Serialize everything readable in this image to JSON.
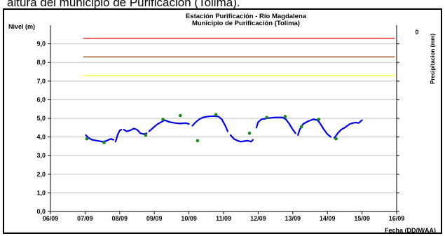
{
  "caption": "altura del municipio de Purificación (Tolima).",
  "chart_data": {
    "type": "line",
    "title": "Estación Purificación - Río Magdalena",
    "subtitle": "Municipio de Purificación (Tolima)",
    "ylabel": "Nivel (m)",
    "y2label": "Precipitacion (mm)",
    "y2_ticks": [
      "0"
    ],
    "xlabel": "Fecha (DD/M/AA)",
    "ylim": [
      0,
      10
    ],
    "yticks": [
      "0,0",
      "1,0",
      "2,0",
      "3,0",
      "4,0",
      "5,0",
      "6,0",
      "7,0",
      "8,0",
      "9,0"
    ],
    "xticks": [
      "06/09",
      "07/09",
      "08/09",
      "09/09",
      "10/09",
      "11/09",
      "12/09",
      "13/09",
      "14/09",
      "15/09",
      "16/09"
    ],
    "grid": true,
    "legend": "none",
    "thresholds": [
      {
        "value": 9.3,
        "color": "#e03030"
      },
      {
        "value": 8.3,
        "color": "#a0522d"
      },
      {
        "value": 7.3,
        "color": "#ffff33"
      }
    ],
    "series": [
      {
        "line_color": "#0000ee",
        "segments": [
          [
            [
              1.02,
              4.1
            ],
            [
              1.1,
              3.95
            ],
            [
              1.2,
              3.85
            ],
            [
              1.35,
              3.8
            ],
            [
              1.5,
              3.75
            ],
            [
              1.6,
              3.78
            ],
            [
              1.68,
              3.85
            ],
            [
              1.75,
              3.9
            ],
            [
              1.82,
              3.85
            ]
          ],
          [
            [
              1.88,
              3.75
            ],
            [
              1.95,
              4.15
            ],
            [
              2.0,
              4.35
            ],
            [
              2.05,
              4.4
            ]
          ],
          [
            [
              2.12,
              4.4
            ],
            [
              2.2,
              4.3
            ],
            [
              2.3,
              4.35
            ],
            [
              2.4,
              4.45
            ],
            [
              2.5,
              4.4
            ],
            [
              2.6,
              4.2
            ],
            [
              2.7,
              4.15
            ],
            [
              2.78,
              4.2
            ]
          ],
          [
            [
              2.85,
              4.3
            ],
            [
              3.0,
              4.55
            ],
            [
              3.1,
              4.7
            ],
            [
              3.2,
              4.8
            ],
            [
              3.3,
              4.9
            ],
            [
              3.45,
              4.8
            ],
            [
              3.6,
              4.75
            ],
            [
              3.75,
              4.72
            ],
            [
              3.9,
              4.75
            ],
            [
              4.0,
              4.7
            ]
          ],
          [
            [
              4.1,
              4.6
            ],
            [
              4.2,
              4.8
            ],
            [
              4.3,
              4.95
            ],
            [
              4.4,
              5.05
            ],
            [
              4.55,
              5.1
            ],
            [
              4.7,
              5.12
            ],
            [
              4.85,
              5.1
            ],
            [
              4.95,
              4.95
            ],
            [
              5.05,
              4.6
            ],
            [
              5.12,
              4.3
            ]
          ],
          [
            [
              5.2,
              4.1
            ],
            [
              5.3,
              3.9
            ],
            [
              5.4,
              3.8
            ],
            [
              5.5,
              3.75
            ],
            [
              5.6,
              3.78
            ],
            [
              5.7,
              3.8
            ],
            [
              5.8,
              3.75
            ],
            [
              5.85,
              3.85
            ]
          ],
          [
            [
              5.95,
              4.5
            ],
            [
              6.0,
              4.8
            ],
            [
              6.1,
              4.95
            ],
            [
              6.25,
              5.0
            ],
            [
              6.5,
              5.05
            ],
            [
              6.7,
              5.05
            ],
            [
              6.8,
              4.95
            ],
            [
              6.9,
              4.7
            ],
            [
              7.0,
              4.4
            ],
            [
              7.08,
              4.2
            ]
          ],
          [
            [
              7.15,
              4.1
            ],
            [
              7.2,
              4.4
            ],
            [
              7.3,
              4.7
            ],
            [
              7.45,
              4.85
            ],
            [
              7.6,
              4.95
            ],
            [
              7.72,
              4.9
            ],
            [
              7.8,
              4.7
            ],
            [
              7.9,
              4.4
            ],
            [
              8.0,
              4.15
            ],
            [
              8.1,
              4.0
            ]
          ],
          [
            [
              8.2,
              3.95
            ],
            [
              8.3,
              4.2
            ],
            [
              8.4,
              4.4
            ],
            [
              8.5,
              4.5
            ],
            [
              8.65,
              4.7
            ],
            [
              8.8,
              4.78
            ],
            [
              8.9,
              4.75
            ],
            [
              9.0,
              4.9
            ]
          ]
        ]
      },
      {
        "point_color": "#1a8a1a",
        "points": [
          [
            1.05,
            3.9
          ],
          [
            1.55,
            3.7
          ],
          [
            2.75,
            4.1
          ],
          [
            3.25,
            4.95
          ],
          [
            3.75,
            5.15
          ],
          [
            4.25,
            3.8
          ],
          [
            4.78,
            5.2
          ],
          [
            5.75,
            4.2
          ],
          [
            6.25,
            5.05
          ],
          [
            6.78,
            5.1
          ],
          [
            7.25,
            4.55
          ],
          [
            8.25,
            3.9
          ],
          [
            7.75,
            4.95
          ]
        ]
      }
    ]
  }
}
